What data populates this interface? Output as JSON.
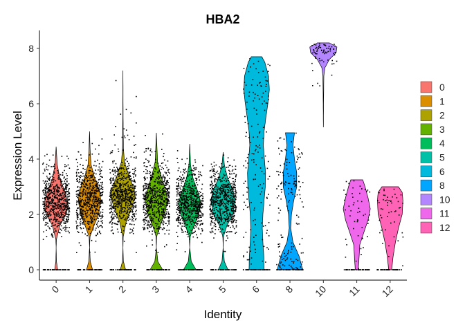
{
  "chart_data": {
    "type": "violin",
    "title": "HBA2",
    "xlabel": "Identity",
    "ylabel": "Expression Level",
    "ylim": [
      -0.3,
      8.65
    ],
    "yticks": [
      0,
      2,
      4,
      6,
      8
    ],
    "categories": [
      "0",
      "1",
      "2",
      "3",
      "4",
      "5",
      "6",
      "8",
      "10",
      "11",
      "12"
    ],
    "colors": [
      "#F8766D",
      "#DB8E00",
      "#AEA200",
      "#64B200",
      "#00BD5C",
      "#00C1A7",
      "#00BADE",
      "#00A6FF",
      "#B385FF",
      "#EF67EB",
      "#FF63B6"
    ],
    "legend": {
      "title": "",
      "position": "right"
    },
    "series": [
      {
        "name": "0",
        "max": 4.45,
        "profile": [
          [
            0,
            0.1
          ],
          [
            0.3,
            0.02
          ],
          [
            0.8,
            0.0
          ],
          [
            1.1,
            0.02
          ],
          [
            1.6,
            0.25
          ],
          [
            2.0,
            0.65
          ],
          [
            2.4,
            0.8
          ],
          [
            2.8,
            0.6
          ],
          [
            3.3,
            0.25
          ],
          [
            3.8,
            0.07
          ],
          [
            4.45,
            0.0
          ]
        ]
      },
      {
        "name": "1",
        "max": 5.0,
        "profile": [
          [
            0,
            0.2
          ],
          [
            0.3,
            0.05
          ],
          [
            0.8,
            0.0
          ],
          [
            1.2,
            0.03
          ],
          [
            1.6,
            0.3
          ],
          [
            2.0,
            0.6
          ],
          [
            2.5,
            0.75
          ],
          [
            2.9,
            0.65
          ],
          [
            3.3,
            0.35
          ],
          [
            3.8,
            0.1
          ],
          [
            4.3,
            0.04
          ],
          [
            5.0,
            0.0
          ]
        ]
      },
      {
        "name": "2",
        "max": 7.2,
        "profile": [
          [
            0,
            0.18
          ],
          [
            0.3,
            0.03
          ],
          [
            0.8,
            0.0
          ],
          [
            1.2,
            0.02
          ],
          [
            1.7,
            0.2
          ],
          [
            2.2,
            0.55
          ],
          [
            2.6,
            0.8
          ],
          [
            2.9,
            0.75
          ],
          [
            3.4,
            0.4
          ],
          [
            3.9,
            0.1
          ],
          [
            4.4,
            0.03
          ],
          [
            5.5,
            0.01
          ],
          [
            7.2,
            0.0
          ]
        ]
      },
      {
        "name": "3",
        "max": 4.95,
        "profile": [
          [
            0,
            0.42
          ],
          [
            0.3,
            0.1
          ],
          [
            0.8,
            0.0
          ],
          [
            1.2,
            0.02
          ],
          [
            1.6,
            0.25
          ],
          [
            2.0,
            0.55
          ],
          [
            2.5,
            0.75
          ],
          [
            2.9,
            0.6
          ],
          [
            3.4,
            0.3
          ],
          [
            3.9,
            0.08
          ],
          [
            4.95,
            0.0
          ]
        ]
      },
      {
        "name": "4",
        "max": 4.55,
        "profile": [
          [
            0,
            0.42
          ],
          [
            0.3,
            0.1
          ],
          [
            0.8,
            0.0
          ],
          [
            1.2,
            0.03
          ],
          [
            1.6,
            0.3
          ],
          [
            2.0,
            0.6
          ],
          [
            2.4,
            0.75
          ],
          [
            2.8,
            0.55
          ],
          [
            3.3,
            0.22
          ],
          [
            3.8,
            0.05
          ],
          [
            4.55,
            0.0
          ]
        ]
      },
      {
        "name": "5",
        "max": 4.25,
        "profile": [
          [
            0,
            0.32
          ],
          [
            0.3,
            0.08
          ],
          [
            0.8,
            0.0
          ],
          [
            1.2,
            0.02
          ],
          [
            1.6,
            0.25
          ],
          [
            2.0,
            0.65
          ],
          [
            2.5,
            0.8
          ],
          [
            2.9,
            0.65
          ],
          [
            3.3,
            0.3
          ],
          [
            3.8,
            0.08
          ],
          [
            4.25,
            0.0
          ]
        ]
      },
      {
        "name": "6",
        "max": 7.7,
        "profile": [
          [
            0,
            0.5
          ],
          [
            0.5,
            0.48
          ],
          [
            1.0,
            0.42
          ],
          [
            1.5,
            0.38
          ],
          [
            2.0,
            0.42
          ],
          [
            2.5,
            0.5
          ],
          [
            3.0,
            0.58
          ],
          [
            3.5,
            0.6
          ],
          [
            4.0,
            0.52
          ],
          [
            4.5,
            0.45
          ],
          [
            5.0,
            0.5
          ],
          [
            5.5,
            0.62
          ],
          [
            6.0,
            0.75
          ],
          [
            6.5,
            0.85
          ],
          [
            7.0,
            0.8
          ],
          [
            7.5,
            0.55
          ],
          [
            7.7,
            0.35
          ]
        ]
      },
      {
        "name": "8",
        "max": 4.95,
        "profile": [
          [
            0,
            0.85
          ],
          [
            0.5,
            0.6
          ],
          [
            1.0,
            0.2
          ],
          [
            1.5,
            0.05
          ],
          [
            2.0,
            0.1
          ],
          [
            2.5,
            0.25
          ],
          [
            3.0,
            0.45
          ],
          [
            3.5,
            0.45
          ],
          [
            4.0,
            0.3
          ],
          [
            4.5,
            0.2
          ],
          [
            4.95,
            0.3
          ]
        ]
      },
      {
        "name": "10",
        "min": 5.15,
        "max": 8.2,
        "profile": [
          [
            5.15,
            0.0
          ],
          [
            6.0,
            0.01
          ],
          [
            7.0,
            0.03
          ],
          [
            7.3,
            0.1
          ],
          [
            7.6,
            0.4
          ],
          [
            7.85,
            0.85
          ],
          [
            8.05,
            0.9
          ],
          [
            8.2,
            0.4
          ]
        ]
      },
      {
        "name": "11",
        "max": 3.25,
        "profile": [
          [
            0,
            0.1
          ],
          [
            0.4,
            0.15
          ],
          [
            0.9,
            0.2
          ],
          [
            1.4,
            0.5
          ],
          [
            1.8,
            0.75
          ],
          [
            2.2,
            0.9
          ],
          [
            2.6,
            0.75
          ],
          [
            3.0,
            0.55
          ],
          [
            3.25,
            0.4
          ]
        ]
      },
      {
        "name": "12",
        "max": 3.0,
        "profile": [
          [
            0,
            0.1
          ],
          [
            0.5,
            0.2
          ],
          [
            1.0,
            0.35
          ],
          [
            1.5,
            0.55
          ],
          [
            2.0,
            0.8
          ],
          [
            2.5,
            0.85
          ],
          [
            2.8,
            0.8
          ],
          [
            3.0,
            0.55
          ]
        ]
      }
    ]
  }
}
